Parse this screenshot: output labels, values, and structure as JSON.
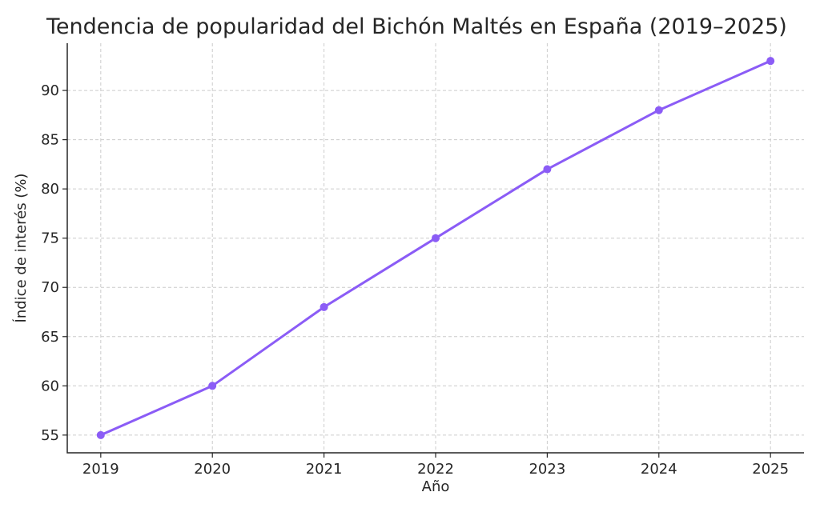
{
  "chart_data": {
    "type": "line",
    "title": "Tendencia de popularidad del Bichón Maltés en España (2019–2025)",
    "xlabel": "Año",
    "ylabel": "Índice de interés (%)",
    "x": [
      2019,
      2020,
      2021,
      2022,
      2023,
      2024,
      2025
    ],
    "x_tick_labels": [
      "2019",
      "2020",
      "2021",
      "2022",
      "2023",
      "2024",
      "2025"
    ],
    "y_ticks": [
      55,
      60,
      65,
      70,
      75,
      80,
      85,
      90
    ],
    "ylim": [
      53.2,
      94.8
    ],
    "xlim": [
      2018.7,
      2025.3
    ],
    "grid": true,
    "series": [
      {
        "values": [
          55,
          60,
          68,
          75,
          82,
          88,
          93
        ],
        "color": "#8b5cf6"
      }
    ]
  }
}
